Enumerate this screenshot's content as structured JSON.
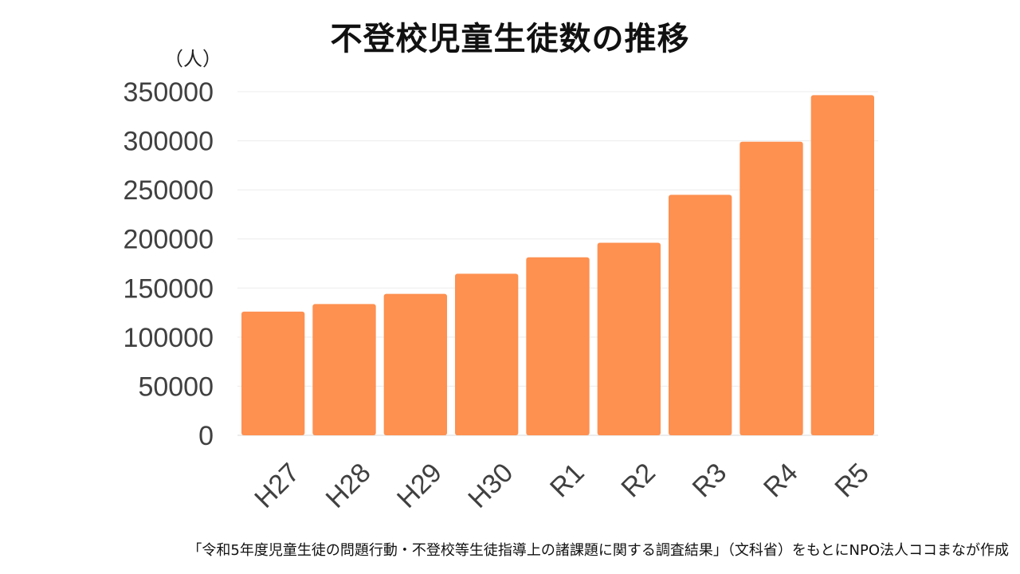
{
  "chart_data": {
    "type": "bar",
    "title": "不登校児童生徒数の推移",
    "ylabel": "（人）",
    "xlabel": "",
    "categories": [
      "H27",
      "H28",
      "H29",
      "H30",
      "R1",
      "R2",
      "R3",
      "R4",
      "R5"
    ],
    "values": [
      125991,
      133683,
      144031,
      164528,
      181272,
      196127,
      244940,
      299048,
      346482
    ],
    "ylim": [
      0,
      350000
    ],
    "yticks": [
      0,
      50000,
      100000,
      150000,
      200000,
      250000,
      300000,
      350000
    ],
    "grid": true,
    "legend": "none",
    "bar_color": "#fe9050",
    "note": "「令和5年度児童生徒の問題行動・不登校等生徒指導上の諸課題に関する調査結果」（文科省）をもとにNPO法人ココまなが作成"
  }
}
